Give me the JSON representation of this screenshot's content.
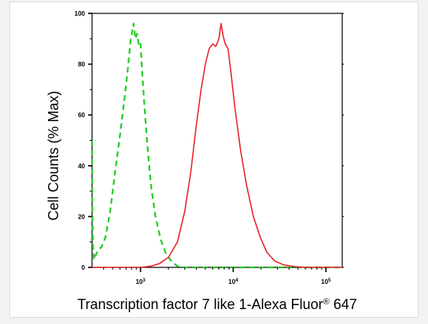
{
  "chart_data": {
    "type": "line",
    "title": "",
    "xlabel_main": "Transcription factor 7 like 1-Alexa Fluor",
    "xlabel_sup": "®",
    "xlabel_tail": " 647",
    "ylabel": "Cell Counts (% Max)",
    "x_scale": "log",
    "xlim": [
      300,
      150000
    ],
    "ylim": [
      0,
      100
    ],
    "y_ticks": [
      0,
      20,
      40,
      60,
      80,
      100
    ],
    "y_tick_labels": [
      "0",
      "20",
      "40",
      "60",
      "80",
      "100"
    ],
    "x_ticks": [
      1000,
      10000,
      100000
    ],
    "x_tick_base": "10",
    "x_tick_exponents": [
      "3",
      "4",
      "5"
    ],
    "grid": false,
    "legend": "none",
    "series": [
      {
        "color": "#22cc22",
        "style": "dashed",
        "x": [
          300,
          303,
          307,
          315,
          330,
          350,
          380,
          420,
          470,
          530,
          600,
          660,
          720,
          780,
          840,
          880,
          920,
          960,
          1000,
          1050,
          1120,
          1200,
          1300,
          1450,
          1650,
          1900,
          2200,
          2500,
          3000,
          5000,
          10000,
          50000,
          150000
        ],
        "y": [
          50,
          20,
          8,
          3,
          5,
          7,
          8,
          12,
          22,
          37,
          52,
          64,
          76,
          89,
          96,
          90,
          92,
          87,
          88,
          75,
          60,
          46,
          32,
          20,
          11,
          5,
          2,
          0.5,
          0,
          0,
          0,
          0,
          0
        ]
      },
      {
        "color": "#e8262b",
        "style": "solid",
        "x": [
          300,
          1000,
          1300,
          1600,
          2000,
          2500,
          3000,
          3500,
          4000,
          4500,
          5000,
          5500,
          6000,
          6500,
          7000,
          7400,
          7800,
          8200,
          8800,
          9500,
          10500,
          12000,
          14000,
          16500,
          19500,
          23000,
          28000,
          35000,
          45000,
          60000,
          150000
        ],
        "y": [
          0,
          0,
          0.5,
          1.5,
          4,
          10,
          22,
          38,
          56,
          70,
          80,
          86,
          88,
          87,
          90,
          96,
          91,
          88,
          86,
          76,
          62,
          46,
          32,
          20,
          12,
          6,
          2.5,
          1,
          0.3,
          0,
          0
        ]
      }
    ]
  }
}
